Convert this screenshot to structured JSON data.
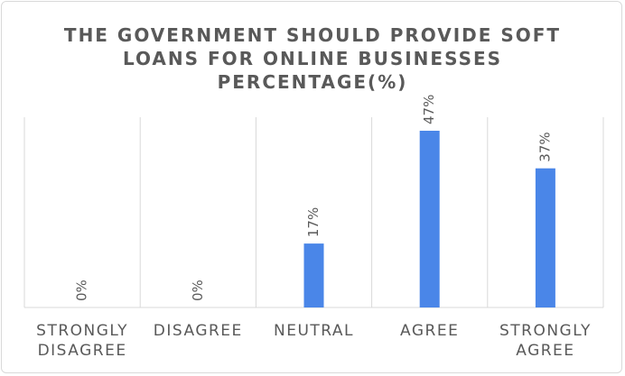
{
  "chart_data": {
    "type": "bar",
    "title_lines": [
      "THE GOVERNMENT SHOULD PROVIDE SOFT",
      "LOANS FOR ONLINE BUSINESSES",
      "PERCENTAGE(%)"
    ],
    "categories": [
      [
        "STRONGLY",
        "DISAGREE"
      ],
      [
        "DISAGREE"
      ],
      [
        "NEUTRAL"
      ],
      [
        "AGREE"
      ],
      [
        "STRONGLY",
        "AGREE"
      ]
    ],
    "values": [
      0,
      0,
      17,
      47,
      37
    ],
    "data_labels": [
      "0%",
      "0%",
      "17%",
      "47%",
      "37%"
    ],
    "ylim": [
      0,
      50
    ],
    "bar_color": "#4a86e8",
    "grid": "vertical category separators"
  }
}
